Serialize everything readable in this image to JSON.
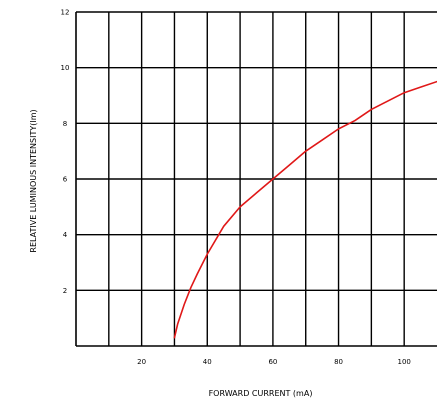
{
  "chart_data": {
    "type": "line",
    "title": "",
    "xlabel": "FORWARD CURRENT (mA)",
    "ylabel": "RELATIVE LUMINOUS INTENSITY(Im)",
    "xlim": [
      0,
      110
    ],
    "ylim": [
      0,
      12
    ],
    "x_ticks": [
      20,
      40,
      60,
      80,
      100
    ],
    "x_tick_labels": [
      "20",
      "40",
      "60",
      "80",
      "100"
    ],
    "y_ticks": [
      2,
      4,
      6,
      8,
      10,
      12
    ],
    "y_tick_labels": [
      "2",
      "4",
      "6",
      "8",
      "10",
      "12"
    ],
    "x_gridlines": [
      10,
      20,
      30,
      40,
      50,
      60,
      70,
      80,
      90,
      100
    ],
    "y_gridlines": [
      2,
      4,
      6,
      8,
      10,
      12
    ],
    "grid": true,
    "legend": "none",
    "series": [
      {
        "color": "#e01818",
        "x": [
          30,
          31,
          33,
          35,
          37,
          40,
          45,
          50,
          55,
          60,
          65,
          70,
          75,
          80,
          85,
          90,
          95,
          100,
          105,
          110
        ],
        "y": [
          0.3,
          0.8,
          1.5,
          2.1,
          2.6,
          3.3,
          4.3,
          5.0,
          5.5,
          6.0,
          6.5,
          7.0,
          7.4,
          7.8,
          8.1,
          8.5,
          8.8,
          9.1,
          9.3,
          9.5
        ]
      }
    ]
  }
}
